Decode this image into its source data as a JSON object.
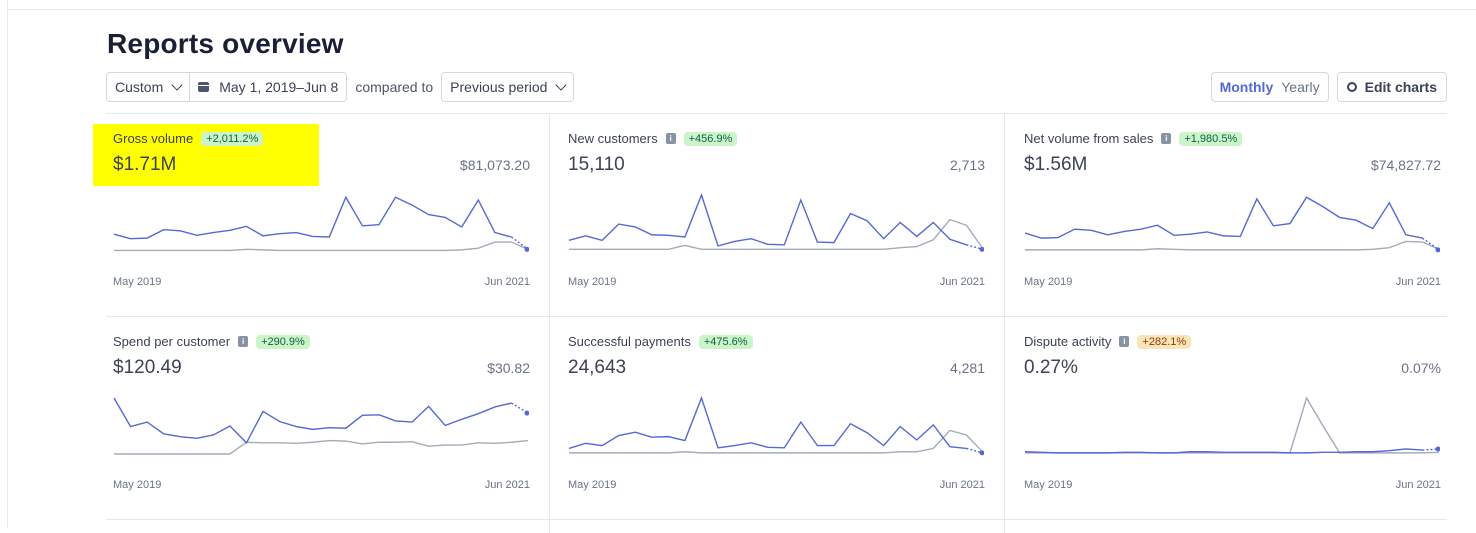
{
  "page": {
    "title": "Reports overview"
  },
  "toolbar": {
    "range_select": "Custom",
    "date_range": "May 1, 2019–Jun 8",
    "compared_to_label": "compared to",
    "compare_select": "Previous period",
    "interval_monthly": "Monthly",
    "interval_yearly": "Yearly",
    "edit_charts": "Edit charts"
  },
  "colors": {
    "accent": "#5469d4",
    "previous": "#a3acb9",
    "highlight": "#ffff00",
    "positive_bg": "#cbf4c9",
    "warning_bg": "#f8e5b9"
  },
  "cards": [
    {
      "title": "Gross volume",
      "has_info": false,
      "change": "+2,011.2%",
      "badge": "positive",
      "value": "$1.71M",
      "previous": "$81,073.20",
      "x_start": "May 2019",
      "x_end": "Jun 2021",
      "current": [
        0.3,
        0.22,
        0.23,
        0.38,
        0.36,
        0.28,
        0.33,
        0.37,
        0.44,
        0.27,
        0.31,
        0.33,
        0.26,
        0.25,
        0.96,
        0.45,
        0.47,
        0.96,
        0.82,
        0.65,
        0.6,
        0.43,
        0.91,
        0.33,
        0.25
      ],
      "current_forecast": [
        0.25,
        0.03
      ],
      "previous_series": [
        0.01,
        0.01,
        0.01,
        0.01,
        0.01,
        0.01,
        0.01,
        0.01,
        0.03,
        0.02,
        0.01,
        0.01,
        0.01,
        0.01,
        0.01,
        0.01,
        0.01,
        0.01,
        0.01,
        0.01,
        0.01,
        0.02,
        0.05,
        0.16,
        0.16,
        0.03
      ]
    },
    {
      "title": "New customers",
      "has_info": true,
      "change": "+456.9%",
      "badge": "positive",
      "value": "15,110",
      "previous": "2,713",
      "x_start": "May 2019",
      "x_end": "Jun 2021",
      "current": [
        0.19,
        0.27,
        0.19,
        0.48,
        0.43,
        0.29,
        0.28,
        0.25,
        1.0,
        0.09,
        0.17,
        0.22,
        0.12,
        0.11,
        0.91,
        0.16,
        0.15,
        0.67,
        0.54,
        0.22,
        0.51,
        0.26,
        0.51,
        0.21,
        0.11
      ],
      "current_forecast": [
        0.11,
        0.03
      ],
      "previous_series": [
        0.03,
        0.03,
        0.03,
        0.03,
        0.03,
        0.03,
        0.03,
        0.1,
        0.03,
        0.03,
        0.03,
        0.03,
        0.03,
        0.03,
        0.03,
        0.03,
        0.03,
        0.03,
        0.03,
        0.03,
        0.06,
        0.08,
        0.2,
        0.56,
        0.46,
        0.04
      ]
    },
    {
      "title": "Net volume from sales",
      "has_info": true,
      "change": "+1,980.5%",
      "badge": "positive",
      "value": "$1.56M",
      "previous": "$74,827.72",
      "x_start": "May 2019",
      "x_end": "Jun 2021",
      "current": [
        0.32,
        0.23,
        0.24,
        0.39,
        0.37,
        0.29,
        0.35,
        0.39,
        0.46,
        0.28,
        0.3,
        0.34,
        0.27,
        0.26,
        0.93,
        0.45,
        0.49,
        0.96,
        0.79,
        0.6,
        0.55,
        0.4,
        0.86,
        0.29,
        0.23
      ],
      "current_forecast": [
        0.23,
        0.02
      ],
      "previous_series": [
        0.02,
        0.02,
        0.02,
        0.02,
        0.02,
        0.02,
        0.02,
        0.02,
        0.04,
        0.03,
        0.02,
        0.02,
        0.02,
        0.02,
        0.02,
        0.02,
        0.02,
        0.02,
        0.02,
        0.02,
        0.02,
        0.03,
        0.06,
        0.17,
        0.16,
        0.03
      ]
    },
    {
      "title": "Spend per customer",
      "has_info": true,
      "change": "+290.9%",
      "badge": "positive",
      "value": "$120.49",
      "previous": "$30.82",
      "x_start": "May 2019",
      "x_end": "Jun 2021",
      "current": [
        1.0,
        0.49,
        0.57,
        0.36,
        0.31,
        0.28,
        0.34,
        0.5,
        0.2,
        0.76,
        0.58,
        0.49,
        0.44,
        0.47,
        0.46,
        0.69,
        0.7,
        0.59,
        0.57,
        0.85,
        0.51,
        0.62,
        0.72,
        0.84,
        0.91
      ],
      "current_forecast": [
        0.91,
        0.73
      ],
      "previous_series": [
        0,
        0,
        0,
        0,
        0,
        0,
        0,
        0,
        0.21,
        0.2,
        0.2,
        0.19,
        0.21,
        0.24,
        0.23,
        0.18,
        0.21,
        0.21,
        0.22,
        0.14,
        0.16,
        0.16,
        0.2,
        0.19,
        0.21,
        0.24
      ]
    },
    {
      "title": "Successful payments",
      "has_info": false,
      "change": "+475.6%",
      "badge": "positive",
      "value": "24,643",
      "previous": "4,281",
      "x_start": "May 2019",
      "x_end": "Jun 2021",
      "current": [
        0.1,
        0.19,
        0.15,
        0.33,
        0.39,
        0.3,
        0.31,
        0.24,
        1.0,
        0.11,
        0.15,
        0.2,
        0.12,
        0.11,
        0.57,
        0.15,
        0.15,
        0.54,
        0.38,
        0.15,
        0.49,
        0.25,
        0.52,
        0.13,
        0.1
      ],
      "current_forecast": [
        0.1,
        0.02
      ],
      "previous_series": [
        0.02,
        0.02,
        0.02,
        0.02,
        0.02,
        0.02,
        0.02,
        0.04,
        0.02,
        0.02,
        0.02,
        0.02,
        0.02,
        0.02,
        0.02,
        0.02,
        0.02,
        0.02,
        0.02,
        0.02,
        0.04,
        0.04,
        0.1,
        0.42,
        0.34,
        0.03
      ]
    },
    {
      "title": "Dispute activity",
      "has_info": true,
      "change": "+282.1%",
      "badge": "warning",
      "value": "0.27%",
      "previous": "0.07%",
      "x_start": "May 2019",
      "x_end": "Jun 2021",
      "current": [
        0.04,
        0.03,
        0.02,
        0.02,
        0.02,
        0.02,
        0.03,
        0.03,
        0.02,
        0.02,
        0.04,
        0.04,
        0.03,
        0.03,
        0.03,
        0.03,
        0.02,
        0.02,
        0.03,
        0.03,
        0.04,
        0.04,
        0.06,
        0.09,
        0.07
      ],
      "current_forecast": [
        0.07,
        0.09
      ],
      "previous_series": [
        0.02,
        0.02,
        0.02,
        0.02,
        0.02,
        0.02,
        0.02,
        0.02,
        0.02,
        0.02,
        0.02,
        0.02,
        0.02,
        0.02,
        0.02,
        0.02,
        0.02,
        1.0,
        0.5,
        0.02,
        0.02,
        0.02,
        0.02,
        0.02,
        0.02,
        0.03
      ]
    }
  ]
}
